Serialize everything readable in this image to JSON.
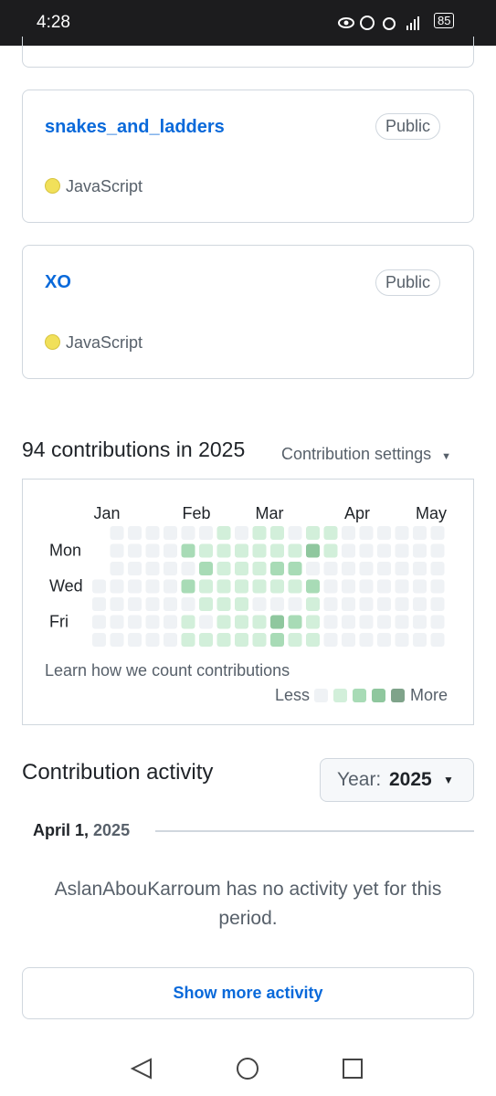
{
  "status": {
    "time": "4:28",
    "battery": "85"
  },
  "repos": [
    {
      "name": "snakes_and_ladders",
      "visibility": "Public",
      "language": "JavaScript"
    },
    {
      "name": "XO",
      "visibility": "Public",
      "language": "JavaScript"
    }
  ],
  "contributions": {
    "heading": "94 contributions in 2025",
    "settings": "Contribution settings",
    "months": [
      "Jan",
      "Feb",
      "Mar",
      "Apr",
      "May"
    ],
    "days": [
      "Mon",
      "Wed",
      "Fri"
    ],
    "level_colors": [
      "#eff2f5",
      "#d2efda",
      "#a8dbb6",
      "#8fc79e",
      "#7fa38a"
    ],
    "weeks": [
      [
        null,
        null,
        null,
        0,
        0,
        0,
        0
      ],
      [
        0,
        0,
        0,
        0,
        0,
        0,
        0
      ],
      [
        0,
        0,
        0,
        0,
        0,
        0,
        0
      ],
      [
        0,
        0,
        0,
        0,
        0,
        0,
        0
      ],
      [
        0,
        0,
        0,
        0,
        0,
        0,
        0
      ],
      [
        0,
        2,
        0,
        2,
        0,
        1,
        1
      ],
      [
        0,
        1,
        2,
        1,
        1,
        0,
        1
      ],
      [
        1,
        1,
        1,
        1,
        1,
        1,
        1
      ],
      [
        0,
        1,
        1,
        1,
        1,
        1,
        1
      ],
      [
        1,
        1,
        1,
        1,
        0,
        1,
        1
      ],
      [
        1,
        1,
        2,
        1,
        0,
        3,
        2
      ],
      [
        0,
        1,
        2,
        1,
        0,
        2,
        1
      ],
      [
        1,
        3,
        0,
        2,
        1,
        1,
        1
      ],
      [
        1,
        1,
        0,
        0,
        0,
        0,
        0
      ],
      [
        0,
        0,
        0,
        0,
        0,
        0,
        0
      ],
      [
        0,
        0,
        0,
        0,
        0,
        0,
        0
      ],
      [
        0,
        0,
        0,
        0,
        0,
        0,
        0
      ],
      [
        0,
        0,
        0,
        0,
        0,
        0,
        0
      ],
      [
        0,
        0,
        0,
        0,
        0,
        0,
        0
      ],
      [
        0,
        0,
        0,
        0,
        0,
        0,
        0
      ]
    ],
    "learn": "Learn how we count contributions",
    "less": "Less",
    "more": "More"
  },
  "activity": {
    "title": "Contribution activity",
    "year_label": "Year:",
    "year": "2025",
    "date": "April 1,",
    "date_year": "2025",
    "message": "AslanAbouKarroum has no activity yet for this period.",
    "button": "Show more activity"
  }
}
